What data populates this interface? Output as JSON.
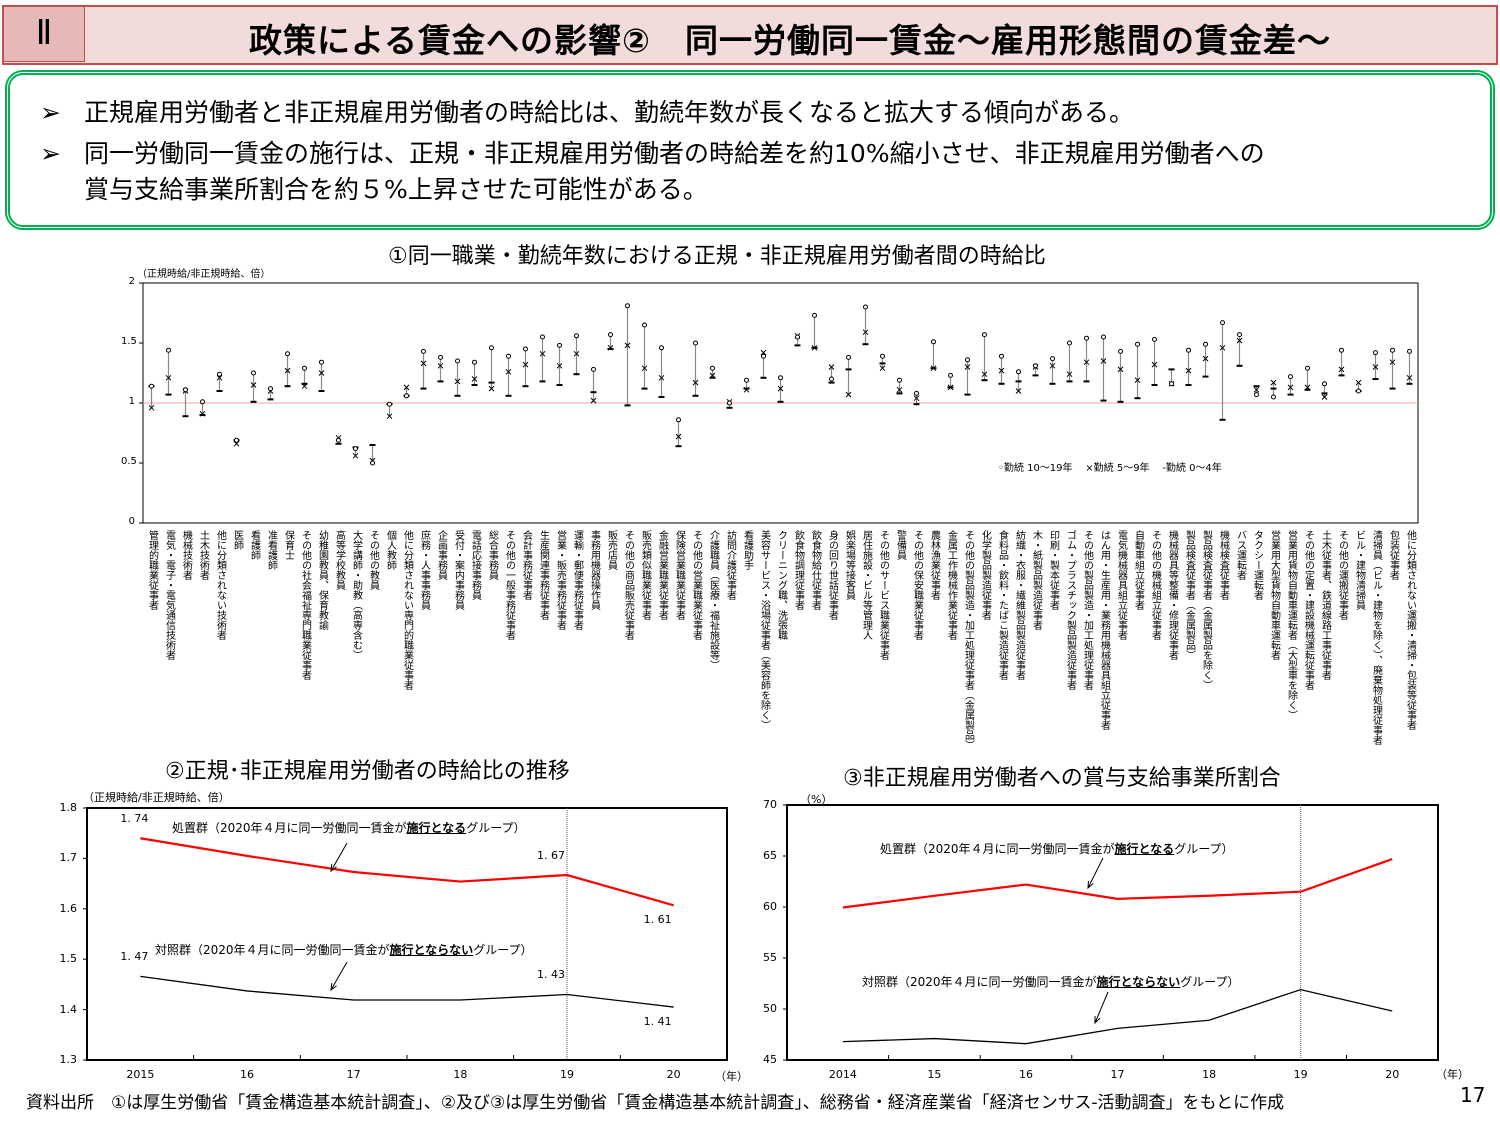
{
  "header": {
    "section": "Ⅱ",
    "title": "政策による賃金への影響②　同一労働同一賃金～雇用形態間の賃金差～"
  },
  "summary": {
    "marker": "➢",
    "bullets": [
      "正規雇用労働者と非正規雇用労働者の時給比は、勤続年数が長くなると拡大する傾向がある。",
      "同一労働同一賃金の施行は、正規・非正規雇用労働者の時給差を約10%縮小させ、非正規雇用労働者への",
      "賞与支給事業所割合を約５%上昇させた可能性がある。"
    ]
  },
  "chart_data": [
    {
      "type": "scatter",
      "title": "①同一職業・勤続年数における正規・非正規雇用労働者間の時給比",
      "ylabel": "（正規時給/非正規時給、倍）",
      "ylim": [
        0,
        2
      ],
      "yticks": [
        "0",
        "0.5",
        "1",
        "1.5",
        "2"
      ],
      "reference_line": {
        "y": 1,
        "color": "#f4a0a0"
      },
      "legend": {
        "placement": "bottom-right",
        "entries": [
          "勤続 10～19年",
          "勤続 5～9年",
          "勤続 0～4年"
        ],
        "markers": [
          "circle",
          "cross",
          "dash"
        ]
      },
      "categories": [
        "管理的職業従事者",
        "電気・電子・電気通信技術者",
        "機械技術者",
        "土木技術者",
        "他に分類されない技術者",
        "医師",
        "看護師",
        "准看護師",
        "保育士",
        "その他の社会福祉専門職業従事者",
        "幼稚園教員、保育教諭",
        "高等学校教員",
        "大学講師・助教（高専含む）",
        "その他の教員",
        "個人教師",
        "他に分類されない専門的職業従事者",
        "庶務・人事事務員",
        "企画事務員",
        "受付・案内事務員",
        "電話応接事務員",
        "総合事務員",
        "その他の一般事務従事者",
        "会計事務従事者",
        "生産関連事務従事者",
        "営業・販売事務従事者",
        "運輸・郵便事務従事者",
        "事務用機器操作員",
        "販売店員",
        "その他の商品販売従事者",
        "販売類似職業従事者",
        "金融営業職業従事者",
        "保険営業職業従事者",
        "その他の営業職業従事者",
        "介護職員（医療・福祉施設等）",
        "訪問介護従事者",
        "看護助手",
        "美容サービス・浴場従事者（美容師を除く）",
        "クリーニング職、洗張職",
        "飲食物調理従事者",
        "飲食物給仕従事者",
        "身の回り世話従事者",
        "娯楽場等接客員",
        "居住施設・ビル等管理人",
        "その他のサービス職業従事者",
        "警備員",
        "その他の保安職業従事者",
        "農林漁業従事者",
        "金属工作機械作業従事者",
        "その他の製品製造・加工処理従事者（金属製品）",
        "化学製品製造従事者",
        "食料品・飲料・たばこ製造従事者",
        "紡織・衣服・繊維製品製造従事者",
        "木・紙製品製造従事者",
        "印刷・製本従事者",
        "ゴム・プラスチック製品製造従事者",
        "その他の製品製造・加工処理従事者",
        "はん用・生産用・業務用機械器具組立従事者",
        "電気機械器具組立従事者",
        "自動車組立従事者",
        "その他の機械組立従事者",
        "機械器具等整備・修理従事者",
        "製品検査従事者（金属製品）",
        "製品検査従事者（金属製品を除く）",
        "機械検査従事者",
        "バス運転者",
        "タクシー運転者",
        "営業用大型貨物自動車運転者",
        "営業用貨物自動車運転者（大型車を除く）",
        "その他の定置・建設機械運転従事者",
        "土木従事者、鉄道線路工事従事者",
        "その他の運搬従事者",
        "ビル・建物清掃員",
        "清掃員（ビル・建物を除く）、廃棄物処理従事者",
        "包装従事者",
        "他に分類されない運搬・清掃・包装等従事者"
      ],
      "series": [
        {
          "name": "勤続 10～19年",
          "values": [
            1.14,
            1.44,
            1.11,
            1.01,
            1.24,
            0.69,
            1.25,
            1.12,
            1.41,
            1.29,
            1.34,
            0.69,
            0.62,
            0.5,
            0.99,
            1.06,
            1.43,
            1.38,
            1.35,
            1.34,
            1.46,
            1.39,
            1.45,
            1.55,
            1.48,
            1.56,
            1.28,
            1.57,
            1.81,
            1.65,
            1.46,
            0.86,
            1.5,
            1.29,
            1.0,
            1.19,
            1.39,
            1.21,
            1.55,
            1.73,
            1.2,
            1.38,
            1.8,
            1.39,
            1.19,
            1.08,
            1.51,
            1.23,
            1.36,
            1.57,
            1.39,
            1.26,
            1.31,
            1.37,
            1.5,
            1.54,
            1.55,
            1.43,
            1.49,
            1.53,
            1.16,
            1.44,
            1.49,
            1.67,
            1.57,
            1.07,
            1.05,
            1.22,
            1.29,
            1.16,
            1.44,
            1.1,
            1.42,
            1.44,
            1.43
          ]
        },
        {
          "name": "勤続 5～9年",
          "values": [
            0.96,
            1.21,
            1.1,
            0.91,
            1.21,
            0.66,
            1.15,
            1.1,
            1.27,
            1.14,
            1.25,
            0.71,
            0.56,
            0.52,
            0.89,
            1.13,
            1.33,
            1.31,
            1.18,
            1.2,
            1.12,
            1.26,
            1.32,
            1.41,
            1.31,
            1.41,
            1.02,
            1.46,
            1.48,
            1.29,
            1.21,
            0.72,
            1.17,
            1.23,
            1.01,
            1.11,
            1.42,
            1.12,
            1.56,
            1.46,
            1.3,
            1.07,
            1.59,
            1.29,
            1.11,
            1.04,
            1.29,
            1.13,
            1.3,
            1.24,
            1.27,
            1.1,
            1.3,
            1.31,
            1.24,
            1.34,
            1.35,
            1.28,
            1.19,
            1.32,
            1.16,
            1.27,
            1.37,
            1.46,
            1.52,
            1.11,
            1.17,
            1.13,
            1.13,
            1.05,
            1.28,
            1.17,
            1.3,
            1.34,
            1.21
          ]
        },
        {
          "name": "勤続 0～4年",
          "values": [
            1.14,
            1.07,
            0.89,
            0.9,
            1.1,
            0.69,
            1.01,
            1.03,
            1.14,
            1.16,
            1.1,
            0.66,
            0.63,
            0.65,
            0.99,
            1.06,
            1.12,
            1.18,
            1.06,
            1.15,
            1.17,
            1.06,
            1.14,
            1.18,
            1.15,
            1.24,
            1.09,
            1.45,
            0.98,
            1.12,
            1.05,
            0.64,
            1.06,
            1.21,
            0.96,
            1.12,
            1.21,
            1.01,
            1.48,
            1.46,
            1.17,
            1.28,
            1.49,
            1.33,
            1.08,
            0.99,
            1.29,
            1.13,
            1.07,
            1.19,
            1.16,
            1.18,
            1.23,
            1.16,
            1.18,
            1.18,
            1.02,
            1.01,
            1.04,
            1.15,
            1.28,
            1.15,
            1.22,
            0.86,
            1.31,
            1.14,
            1.12,
            1.07,
            1.11,
            1.08,
            1.23,
            1.1,
            1.2,
            1.12,
            1.16
          ]
        }
      ],
      "colors": {
        "markers": "#000000",
        "range_line": "#888888"
      }
    },
    {
      "type": "line",
      "title": "②正規･非正規雇用労働者の時給比の推移",
      "ylabel": "（正規時給/非正規時給、倍）",
      "xlabel": "（年）",
      "ylim": [
        1.3,
        1.8
      ],
      "yticks": [
        "1.3",
        "1.4",
        "1.5",
        "1.6",
        "1.7",
        "1.8"
      ],
      "x": [
        2015,
        2016,
        2017,
        2018,
        2019,
        2020
      ],
      "xticks": [
        "2015",
        "16",
        "17",
        "18",
        "19",
        "20"
      ],
      "marker_line_x": 2019,
      "series": [
        {
          "name": "処置群",
          "color": "#ff0000",
          "values": [
            1.74,
            1.705,
            1.673,
            1.654,
            1.667,
            1.607
          ],
          "annotation": {
            "prefix": "処置群（2020年４月に同一労働同一賃金が",
            "emphasis": "施行となる",
            "suffix": "グループ）"
          },
          "data_labels": [
            {
              "x": 2015,
              "text": "1. 74"
            },
            {
              "x": 2019,
              "text": "1. 67"
            },
            {
              "x": 2020,
              "text": "1. 61"
            }
          ]
        },
        {
          "name": "対照群",
          "color": "#000000",
          "values": [
            1.466,
            1.437,
            1.419,
            1.419,
            1.43,
            1.405
          ],
          "annotation": {
            "prefix": "対照群（2020年４月に同一労働同一賃金が",
            "emphasis": "施行とならない",
            "suffix": "グループ）"
          },
          "data_labels": [
            {
              "x": 2015,
              "text": "1. 47"
            },
            {
              "x": 2019,
              "text": "1. 43"
            },
            {
              "x": 2020,
              "text": "1. 41"
            }
          ]
        }
      ]
    },
    {
      "type": "line",
      "title": "③非正規雇用労働者への賞与支給事業所割合",
      "ylabel": "（%）",
      "xlabel": "（年）",
      "ylim": [
        45,
        70
      ],
      "yticks": [
        "45",
        "50",
        "55",
        "60",
        "65",
        "70"
      ],
      "x": [
        2014,
        2015,
        2016,
        2017,
        2018,
        2019,
        2020
      ],
      "xticks": [
        "2014",
        "15",
        "16",
        "17",
        "18",
        "19",
        "20"
      ],
      "marker_line_x": 2019,
      "series": [
        {
          "name": "処置群",
          "color": "#ff0000",
          "values": [
            59.95,
            61.1,
            62.2,
            60.8,
            61.1,
            61.5,
            64.7
          ],
          "annotation": {
            "prefix": "処置群（2020年４月に同一労働同一賃金が",
            "emphasis": "施行となる",
            "suffix": "グループ）"
          }
        },
        {
          "name": "対照群",
          "color": "#000000",
          "values": [
            46.8,
            47.1,
            46.6,
            48.1,
            48.9,
            51.9,
            49.8
          ],
          "annotation": {
            "prefix": "対照群（2020年４月に同一労働同一賃金が",
            "emphasis": "施行とならない",
            "suffix": "グループ）"
          }
        }
      ]
    }
  ],
  "footer": {
    "source": "資料出所　①は厚生労働省「賃金構造基本統計調査」、②及び③は厚生労働省「賃金構造基本統計調査」、総務省・経済産業省「経済センサス‐活動調査」をもとに作成",
    "page": "17"
  }
}
